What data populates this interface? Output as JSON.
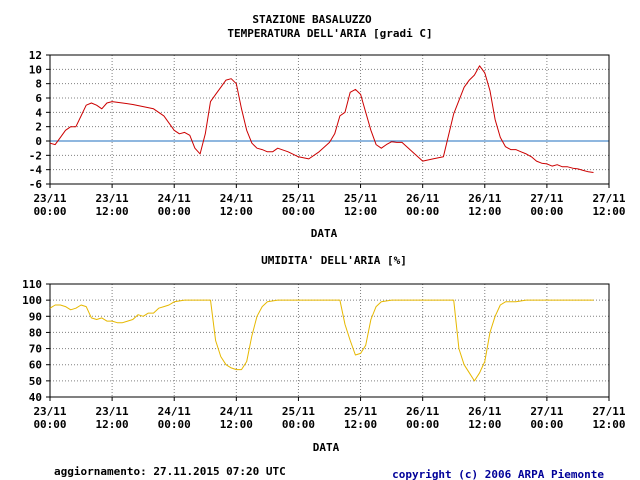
{
  "station_title": "STAZIONE BASALUZZO",
  "update_text": "aggiornamento: 27.11.2015 07:20 UTC",
  "copyright_text": "copyright (c) 2006 ARPA Piemonte",
  "colors": {
    "temperature": "#cc0000",
    "humidity": "#e6b800",
    "zero_line": "#1f6fbf",
    "grid": "#808080",
    "copyright": "#000099"
  },
  "x_ticks": [
    {
      "date": "23/11",
      "time": "00:00"
    },
    {
      "date": "23/11",
      "time": "12:00"
    },
    {
      "date": "24/11",
      "time": "00:00"
    },
    {
      "date": "24/11",
      "time": "12:00"
    },
    {
      "date": "25/11",
      "time": "00:00"
    },
    {
      "date": "25/11",
      "time": "12:00"
    },
    {
      "date": "26/11",
      "time": "00:00"
    },
    {
      "date": "26/11",
      "time": "12:00"
    },
    {
      "date": "27/11",
      "time": "00:00"
    },
    {
      "date": "27/11",
      "time": "12:00"
    }
  ],
  "chart_data": [
    {
      "type": "line",
      "title": "TEMPERATURA DELL'ARIA [gradi C]",
      "xlabel": "DATA",
      "ylabel": "",
      "ylim": [
        -6,
        12
      ],
      "yticks": [
        12,
        10,
        8,
        6,
        4,
        2,
        0,
        -2,
        -4,
        -6
      ],
      "xlim_hours": [
        0,
        108
      ],
      "grid": true,
      "zero_line": true,
      "series": [
        {
          "x": [
            0,
            1,
            2,
            3,
            4,
            5,
            6,
            7,
            8,
            9,
            10,
            11,
            12,
            14,
            16,
            18,
            20,
            22,
            24,
            25,
            26,
            27,
            28,
            29,
            30,
            31,
            32,
            33,
            34,
            35,
            36,
            37,
            38,
            39,
            40,
            41,
            42,
            43,
            44,
            46,
            48,
            50,
            52,
            54,
            55,
            56,
            57,
            58,
            59,
            60,
            61,
            62,
            63,
            64,
            65,
            66,
            67,
            68,
            70,
            72,
            74,
            76,
            78,
            80,
            81,
            82,
            83,
            84,
            85,
            86,
            87,
            88,
            89,
            90,
            91,
            92,
            93,
            94,
            95,
            96,
            97,
            98,
            99,
            100,
            101,
            102,
            103,
            104,
            105
          ],
          "y": [
            -0.3,
            -0.5,
            0.5,
            1.5,
            2,
            2,
            3.5,
            5,
            5.3,
            5,
            4.5,
            5.3,
            5.5,
            5.3,
            5.1,
            4.8,
            4.5,
            3.5,
            1.5,
            1,
            1.2,
            0.8,
            -1,
            -1.8,
            1,
            5.5,
            6.5,
            7.5,
            8.5,
            8.7,
            8,
            4.5,
            1.5,
            -0.3,
            -1,
            -1.2,
            -1.5,
            -1.5,
            -1,
            -1.5,
            -2.2,
            -2.5,
            -1.5,
            -0.2,
            1,
            3.5,
            4,
            6.8,
            7.2,
            6.5,
            4,
            1.5,
            -0.5,
            -1,
            -0.5,
            -0.1,
            -0.2,
            -0.2,
            -1.5,
            -2.8,
            -2.5,
            -2.2,
            3.8,
            7.5,
            8.5,
            9.2,
            10.5,
            9.5,
            7,
            3,
            0.5,
            -0.8,
            -1.2,
            -1.2,
            -1.5,
            -1.8,
            -2.2,
            -2.8,
            -3.1,
            -3.2,
            -3.5,
            -3.3,
            -3.6,
            -3.6,
            -3.8,
            -3.9,
            -4.1,
            -4.3,
            -4.4
          ]
        }
      ]
    },
    {
      "type": "line",
      "title": "UMIDITA' DELL'ARIA [%]",
      "xlabel": "DATA",
      "ylabel": "",
      "ylim": [
        40,
        110
      ],
      "yticks": [
        110,
        100,
        90,
        80,
        70,
        60,
        50,
        40
      ],
      "xlim_hours": [
        0,
        108
      ],
      "grid": true,
      "series": [
        {
          "x": [
            0,
            1,
            2,
            3,
            4,
            5,
            6,
            7,
            8,
            9,
            10,
            11,
            12,
            13,
            14,
            15,
            16,
            17,
            18,
            19,
            20,
            21,
            22,
            23,
            24,
            26,
            28,
            30,
            31,
            32,
            33,
            34,
            35,
            36,
            37,
            38,
            39,
            40,
            41,
            42,
            44,
            46,
            48,
            50,
            52,
            54,
            55,
            56,
            57,
            58,
            59,
            60,
            61,
            62,
            63,
            64,
            66,
            68,
            70,
            72,
            74,
            76,
            77,
            78,
            79,
            80,
            81,
            82,
            83,
            84,
            85,
            86,
            87,
            88,
            90,
            92,
            94,
            96,
            98,
            100,
            102,
            104,
            105
          ],
          "y": [
            95,
            97,
            97,
            96,
            94,
            95,
            97,
            96,
            89,
            88,
            89,
            87,
            87,
            86,
            86,
            87,
            88,
            91,
            90,
            92,
            92,
            95,
            96,
            97,
            99,
            100,
            100,
            100,
            100,
            75,
            65,
            60,
            58,
            57,
            57,
            62,
            78,
            90,
            96,
            99,
            100,
            100,
            100,
            100,
            100,
            100,
            100,
            100,
            85,
            75,
            66,
            67,
            72,
            88,
            96,
            99,
            100,
            100,
            100,
            100,
            100,
            100,
            100,
            100,
            70,
            60,
            55,
            50,
            55,
            62,
            80,
            90,
            97,
            99,
            99,
            100,
            100,
            100,
            100,
            100,
            100,
            100,
            100
          ]
        }
      ]
    }
  ]
}
